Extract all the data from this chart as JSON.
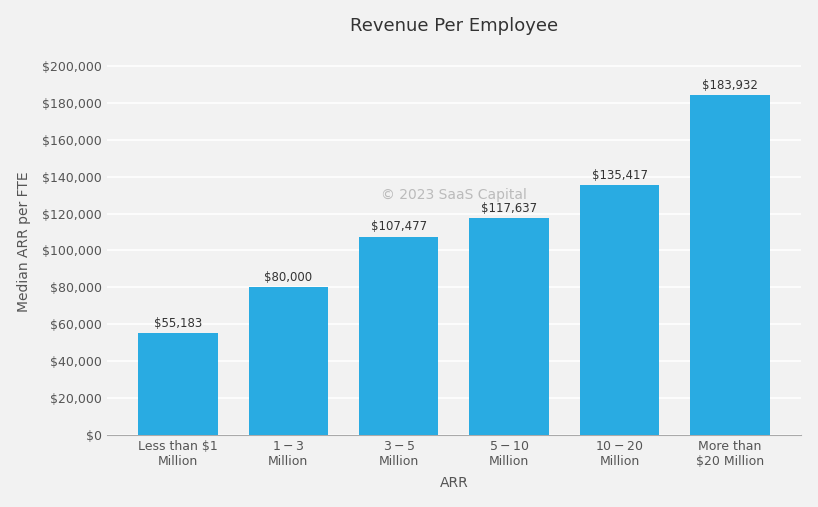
{
  "title": "Revenue Per Employee",
  "xlabel": "ARR",
  "ylabel": "Median ARR per FTE",
  "categories": [
    "Less than $1\nMillion",
    "$1 - $3\nMillion",
    "$3 - $5\nMillion",
    "$5 - $10\nMillion",
    "$10 - $20\nMillion",
    "More than\n$20 Million"
  ],
  "values": [
    55183,
    80000,
    107477,
    117637,
    135417,
    183932
  ],
  "bar_color": "#29ABE2",
  "ylim": [
    0,
    210000
  ],
  "yticks": [
    0,
    20000,
    40000,
    60000,
    80000,
    100000,
    120000,
    140000,
    160000,
    180000,
    200000
  ],
  "label_values": [
    "$55,183",
    "$80,000",
    "$107,477",
    "$117,637",
    "$135,417",
    "$183,932"
  ],
  "watermark": "© 2023 SaaS Capital",
  "background_color": "#f2f2f2",
  "plot_background": "#f2f2f2",
  "grid_color": "#ffffff",
  "title_fontsize": 13,
  "axis_label_fontsize": 10,
  "tick_fontsize": 9,
  "bar_label_fontsize": 8.5,
  "bar_width": 0.72
}
